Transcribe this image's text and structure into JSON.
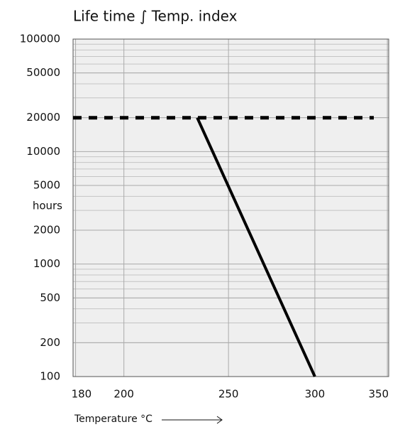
{
  "chart_data": {
    "type": "line",
    "title": "Life time ∫ Temp. index",
    "x_label": "Temperature °C",
    "y_label": "hours",
    "xscale": "arrhenius",
    "yscale": "log",
    "grid": true,
    "xlim": [
      179,
      351
    ],
    "xticks": [
      180,
      200,
      250,
      300,
      350
    ],
    "ylim": [
      100,
      100000
    ],
    "yticks": [
      100,
      200,
      500,
      1000,
      2000,
      5000,
      10000,
      20000,
      50000,
      100000
    ],
    "series": [
      {
        "x": [
          179,
          340
        ],
        "values": [
          20000,
          20000
        ],
        "color": "#000000",
        "dashed": true
      },
      {
        "x": [
          234,
          300
        ],
        "values": [
          20000,
          100
        ],
        "color": "#000000",
        "dashed": false
      }
    ]
  }
}
